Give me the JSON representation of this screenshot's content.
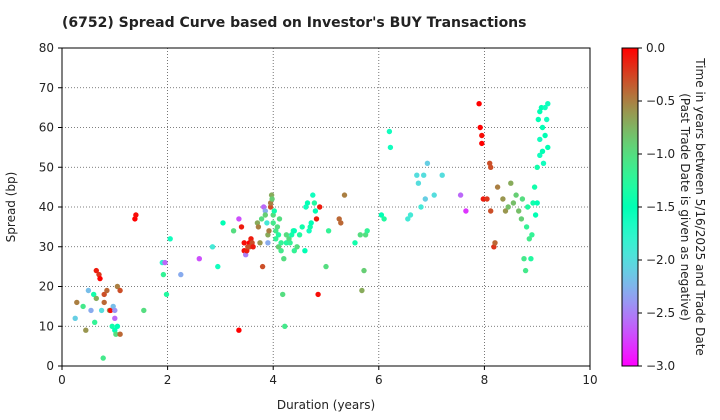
{
  "chart_data": {
    "type": "scatter",
    "title": "(6752)   Spread Curve based on Investor's BUY Transactions",
    "xlabel": "Duration (years)",
    "ylabel": "Spread (bp)",
    "xlim": [
      0,
      10
    ],
    "ylim": [
      0,
      80
    ],
    "xticks": [
      0,
      2,
      4,
      6,
      8,
      10
    ],
    "yticks": [
      0,
      10,
      20,
      30,
      40,
      50,
      60,
      70,
      80
    ],
    "grid": true,
    "colorbar": {
      "label_line1": "Time in years between 5/16/2025 and Trade Date",
      "label_line2": "(Past Trade Date is given as negative)",
      "range": [
        -3.0,
        0.0
      ],
      "ticks": [
        "0.0",
        "−0.5",
        "−1.0",
        "−1.5",
        "−2.0",
        "−2.5",
        "−3.0"
      ],
      "tick_values": [
        0.0,
        -0.5,
        -1.0,
        -1.5,
        -2.0,
        -2.5,
        -3.0
      ],
      "colormap": "rainbow"
    },
    "points": [
      [
        0.25,
        12,
        -2.1
      ],
      [
        0.28,
        16,
        -0.5
      ],
      [
        0.4,
        15,
        -1.1
      ],
      [
        0.45,
        9,
        -0.6
      ],
      [
        0.5,
        19,
        -2.2
      ],
      [
        0.55,
        14,
        -2.3
      ],
      [
        0.6,
        18,
        -1.4
      ],
      [
        0.62,
        11,
        -1.2
      ],
      [
        0.65,
        17,
        -0.7
      ],
      [
        0.65,
        24,
        -0.1
      ],
      [
        0.7,
        23,
        -0.2
      ],
      [
        0.72,
        22,
        0
      ],
      [
        0.75,
        14,
        -2.0
      ],
      [
        0.78,
        2,
        -1.1
      ],
      [
        0.8,
        18,
        -0.3
      ],
      [
        0.8,
        16,
        -0.4
      ],
      [
        0.85,
        19,
        -0.4
      ],
      [
        0.9,
        14,
        -0.6
      ],
      [
        0.92,
        14,
        -0.05
      ],
      [
        0.95,
        10,
        -1.4
      ],
      [
        0.97,
        15,
        -2.2
      ],
      [
        1.0,
        12,
        -2.6
      ],
      [
        1.0,
        14,
        -2.4
      ],
      [
        1.0,
        9,
        -1.5
      ],
      [
        1.02,
        8,
        -1.0
      ],
      [
        1.05,
        10,
        -1.5
      ],
      [
        1.05,
        20,
        -0.5
      ],
      [
        1.1,
        19,
        -0.3
      ],
      [
        1.1,
        8,
        -0.4
      ],
      [
        1.38,
        37,
        0
      ],
      [
        1.4,
        38,
        -0.05
      ],
      [
        1.55,
        14,
        -1.0
      ],
      [
        1.9,
        26,
        -1.8
      ],
      [
        1.92,
        23,
        -1.2
      ],
      [
        1.95,
        26,
        -2.6
      ],
      [
        1.98,
        18,
        -1.3
      ],
      [
        2.05,
        32,
        -1.6
      ],
      [
        2.25,
        23,
        -2.3
      ],
      [
        2.6,
        27,
        -2.7
      ],
      [
        2.85,
        30,
        -1.9
      ],
      [
        2.95,
        25,
        -1.6
      ],
      [
        3.05,
        36,
        -1.5
      ],
      [
        3.25,
        34,
        -1.0
      ],
      [
        3.35,
        9,
        0
      ],
      [
        3.35,
        37,
        -2.7
      ],
      [
        3.4,
        35,
        -0.1
      ],
      [
        3.45,
        31,
        -0.05
      ],
      [
        3.45,
        29,
        -0.05
      ],
      [
        3.48,
        28,
        -2.5
      ],
      [
        3.5,
        29,
        -0.1
      ],
      [
        3.52,
        30,
        -0.3
      ],
      [
        3.55,
        31,
        0
      ],
      [
        3.55,
        30,
        -0.3
      ],
      [
        3.58,
        32,
        -0.1
      ],
      [
        3.6,
        31,
        -0.3
      ],
      [
        3.62,
        30,
        -0.1
      ],
      [
        3.7,
        36,
        -0.7
      ],
      [
        3.72,
        35,
        -0.5
      ],
      [
        3.75,
        31,
        -0.6
      ],
      [
        3.78,
        37,
        -1.0
      ],
      [
        3.8,
        25,
        -0.3
      ],
      [
        3.82,
        40,
        -2.6
      ],
      [
        3.85,
        39,
        -2.3
      ],
      [
        3.85,
        38,
        -0.9
      ],
      [
        3.88,
        36,
        -1.9
      ],
      [
        3.9,
        33,
        -0.7
      ],
      [
        3.9,
        31,
        -2.3
      ],
      [
        3.92,
        34,
        -0.5
      ],
      [
        3.95,
        40,
        -0.3
      ],
      [
        3.95,
        41,
        -0.5
      ],
      [
        3.97,
        43,
        -0.7
      ],
      [
        3.98,
        42,
        -0.9
      ],
      [
        4.0,
        38,
        -1.0
      ],
      [
        4.0,
        36,
        -1.1
      ],
      [
        4.02,
        39,
        -1.4
      ],
      [
        4.05,
        34,
        -1.1
      ],
      [
        4.05,
        32,
        -1.2
      ],
      [
        4.08,
        35,
        -1.0
      ],
      [
        4.1,
        30,
        -0.9
      ],
      [
        4.1,
        33,
        -1.3
      ],
      [
        4.12,
        37,
        -1.0
      ],
      [
        4.15,
        29,
        -1.1
      ],
      [
        4.15,
        31,
        -1.2
      ],
      [
        4.18,
        18,
        -1.0
      ],
      [
        4.2,
        27,
        -1.0
      ],
      [
        4.22,
        10,
        -1.1
      ],
      [
        4.25,
        33,
        -1.0
      ],
      [
        4.25,
        31,
        -1.3
      ],
      [
        4.3,
        32,
        -1.0
      ],
      [
        4.32,
        31,
        -1.2
      ],
      [
        4.35,
        33,
        -1.4
      ],
      [
        4.38,
        34,
        -1.3
      ],
      [
        4.4,
        29,
        -1.2
      ],
      [
        4.4,
        34,
        -1.5
      ],
      [
        4.45,
        30,
        -1.0
      ],
      [
        4.5,
        33,
        -1.3
      ],
      [
        4.55,
        35,
        -1.4
      ],
      [
        4.6,
        29,
        -1.5
      ],
      [
        4.62,
        40,
        -1.6
      ],
      [
        4.65,
        41,
        -1.5
      ],
      [
        4.68,
        34,
        -1.6
      ],
      [
        4.7,
        35,
        -1.4
      ],
      [
        4.72,
        36,
        -1.5
      ],
      [
        4.75,
        43,
        -1.6
      ],
      [
        4.78,
        41,
        -1.3
      ],
      [
        4.8,
        39,
        -1.5
      ],
      [
        4.82,
        37,
        -0.1
      ],
      [
        4.85,
        18,
        -0.05
      ],
      [
        4.88,
        40,
        -0.1
      ],
      [
        5.0,
        25,
        -1.0
      ],
      [
        5.05,
        34,
        -1.2
      ],
      [
        5.25,
        37,
        -0.4
      ],
      [
        5.28,
        36,
        -0.4
      ],
      [
        5.35,
        43,
        -0.5
      ],
      [
        5.55,
        31,
        -1.4
      ],
      [
        5.65,
        33,
        -1.0
      ],
      [
        5.68,
        19,
        -0.7
      ],
      [
        5.72,
        24,
        -0.9
      ],
      [
        5.75,
        33,
        -1.0
      ],
      [
        5.78,
        34,
        -1.2
      ],
      [
        6.05,
        38,
        -1.5
      ],
      [
        6.1,
        37,
        -1.3
      ],
      [
        6.2,
        59,
        -1.6
      ],
      [
        6.22,
        55,
        -1.6
      ],
      [
        6.55,
        37,
        -1.9
      ],
      [
        6.6,
        38,
        -1.9
      ],
      [
        6.72,
        48,
        -2.0
      ],
      [
        6.75,
        46,
        -2.0
      ],
      [
        6.8,
        40,
        -1.9
      ],
      [
        6.85,
        48,
        -2.0
      ],
      [
        6.88,
        42,
        -2.1
      ],
      [
        6.92,
        51,
        -2.1
      ],
      [
        7.05,
        43,
        -2.0
      ],
      [
        7.2,
        48,
        -2.0
      ],
      [
        7.55,
        43,
        -2.6
      ],
      [
        7.65,
        39,
        -2.8
      ],
      [
        7.9,
        66,
        0
      ],
      [
        7.92,
        60,
        0
      ],
      [
        7.95,
        58,
        -0.05
      ],
      [
        7.95,
        56,
        0
      ],
      [
        7.98,
        42,
        -0.1
      ],
      [
        8.05,
        42,
        -0.2
      ],
      [
        8.1,
        51,
        -0.3
      ],
      [
        8.12,
        50,
        -0.3
      ],
      [
        8.12,
        39,
        -0.3
      ],
      [
        8.18,
        30,
        -0.2
      ],
      [
        8.2,
        31,
        -0.4
      ],
      [
        8.25,
        45,
        -0.5
      ],
      [
        8.35,
        42,
        -0.6
      ],
      [
        8.4,
        39,
        -0.6
      ],
      [
        8.45,
        40,
        -0.8
      ],
      [
        8.5,
        46,
        -0.7
      ],
      [
        8.55,
        41,
        -0.8
      ],
      [
        8.6,
        43,
        -0.9
      ],
      [
        8.65,
        39,
        -0.8
      ],
      [
        8.7,
        37,
        -0.9
      ],
      [
        8.72,
        42,
        -1.0
      ],
      [
        8.75,
        27,
        -1.1
      ],
      [
        8.78,
        24,
        -1.1
      ],
      [
        8.8,
        35,
        -1.2
      ],
      [
        8.82,
        40,
        -1.3
      ],
      [
        8.85,
        32,
        -1.1
      ],
      [
        8.88,
        27,
        -1.3
      ],
      [
        8.9,
        33,
        -1.2
      ],
      [
        8.92,
        41,
        -1.4
      ],
      [
        8.95,
        45,
        -1.4
      ],
      [
        8.97,
        38,
        -1.5
      ],
      [
        9.0,
        41,
        -1.5
      ],
      [
        9.0,
        50,
        -1.4
      ],
      [
        9.02,
        62,
        -1.5
      ],
      [
        9.05,
        64,
        -1.5
      ],
      [
        9.05,
        57,
        -1.6
      ],
      [
        9.05,
        53,
        -1.6
      ],
      [
        9.08,
        65,
        -1.5
      ],
      [
        9.1,
        60,
        -1.5
      ],
      [
        9.1,
        54,
        -1.5
      ],
      [
        9.12,
        51,
        -1.6
      ],
      [
        9.15,
        65,
        -1.6
      ],
      [
        9.15,
        58,
        -1.5
      ],
      [
        9.18,
        62,
        -1.6
      ],
      [
        9.2,
        66,
        -1.6
      ],
      [
        9.2,
        55,
        -1.5
      ]
    ]
  }
}
